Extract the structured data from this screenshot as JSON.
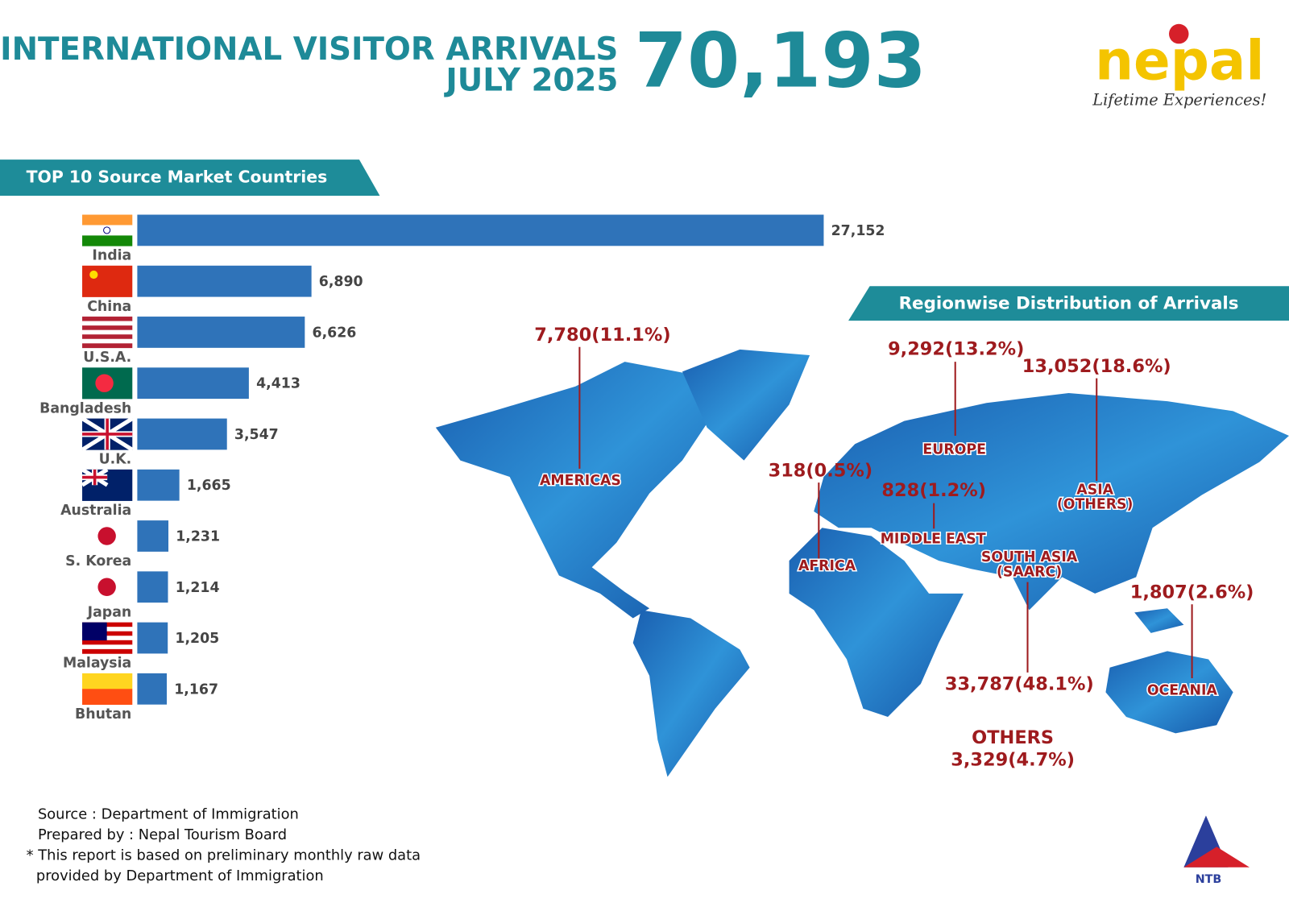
{
  "header": {
    "title": "INTERNATIONAL VISITOR ARRIVALS",
    "subtitle": "JULY 2025",
    "total": "70,193"
  },
  "logo": {
    "name": "nepal",
    "tagline": "Lifetime Experiences!",
    "org": "NTB"
  },
  "chart_data": {
    "type": "bar",
    "orientation": "horizontal",
    "title": "TOP 10 Source Market Countries",
    "categories": [
      "India",
      "China",
      "U.S.A.",
      "Bangladesh",
      "U.K.",
      "Australia",
      "S. Korea",
      "Japan",
      "Malaysia",
      "Bhutan"
    ],
    "values": [
      27152,
      6890,
      6626,
      4413,
      3547,
      1665,
      1231,
      1214,
      1205,
      1167
    ],
    "value_labels": [
      "27,152",
      "6,890",
      "6,626",
      "4,413",
      "3,547",
      "1,665",
      "1,231",
      "1,214",
      "1,205",
      "1,167"
    ],
    "color": "#2f73b9"
  },
  "regions": {
    "title": "Regionwise Distribution of Arrivals",
    "items": [
      {
        "name": [
          "AMERICAS"
        ],
        "value_label": "7,780(11.1%)"
      },
      {
        "name": [
          "EUROPE"
        ],
        "value_label": "9,292(13.2%)"
      },
      {
        "name": [
          "ASIA",
          "(OTHERS)"
        ],
        "value_label": "13,052(18.6%)"
      },
      {
        "name": [
          "AFRICA"
        ],
        "value_label": "318(0.5%)"
      },
      {
        "name": [
          "MIDDLE EAST"
        ],
        "value_label": "828(1.2%)"
      },
      {
        "name": [
          "SOUTH ASIA",
          "(SAARC)"
        ],
        "value_label": "33,787(48.1%)"
      },
      {
        "name": [
          "OCEANIA"
        ],
        "value_label": "1,807(2.6%)"
      },
      {
        "name": [
          "OTHERS"
        ],
        "value_label": "3,329(4.7%)"
      }
    ]
  },
  "footer": {
    "lines": [
      "Source : Department of Immigration",
      "Prepared by : Nepal Tourism Board",
      "* This report is based on preliminary monthly raw data",
      "provided by Department of Immigration"
    ]
  }
}
